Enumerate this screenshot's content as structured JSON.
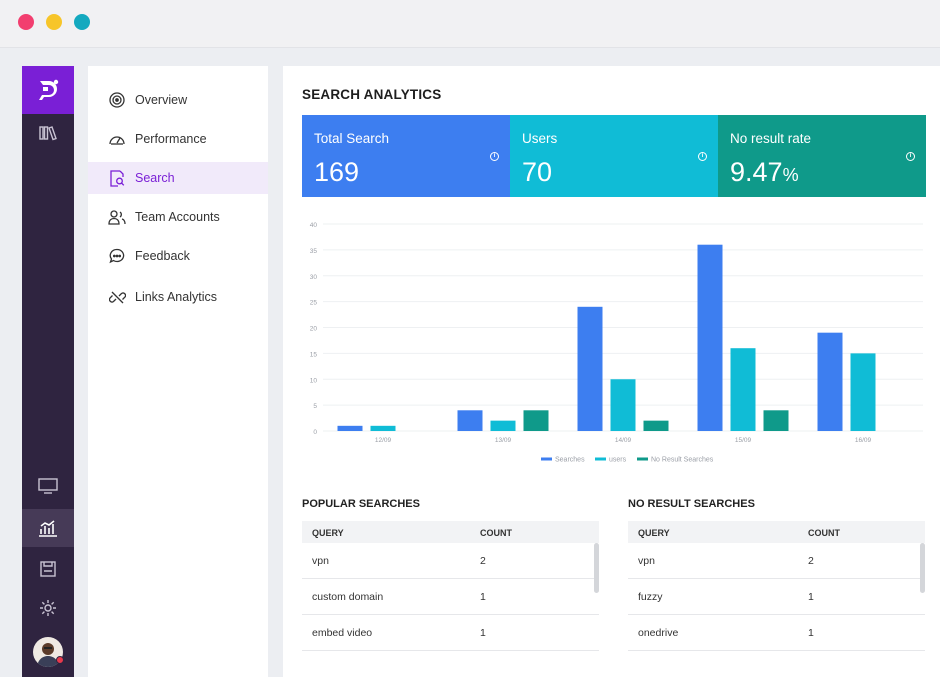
{
  "window": {
    "dots": [
      "#f23e6f",
      "#f7c529",
      "#14a9bf"
    ]
  },
  "rail": {
    "icons": [
      "logo-icon",
      "library-icon",
      "monitor-icon",
      "analytics-icon",
      "save-icon",
      "gear-icon",
      "avatar"
    ],
    "active": "analytics-icon"
  },
  "nav": {
    "items": [
      {
        "label": "Overview",
        "icon": "target-icon"
      },
      {
        "label": "Performance",
        "icon": "gauge-icon"
      },
      {
        "label": "Search",
        "icon": "search-doc-icon",
        "active": true
      },
      {
        "label": "Team Accounts",
        "icon": "team-icon"
      },
      {
        "label": "Feedback",
        "icon": "chat-icon"
      },
      {
        "label": "Links Analytics",
        "icon": "link-icon"
      }
    ]
  },
  "main": {
    "title": "SEARCH ANALYTICS",
    "cards": [
      {
        "label": "Total Search",
        "value": "169",
        "unit": "",
        "color": "#3d7ef0"
      },
      {
        "label": "Users",
        "value": "70",
        "unit": "",
        "color": "#10bcd6"
      },
      {
        "label": "No result rate",
        "value": "9.47",
        "unit": "%",
        "color": "#0f9a8a"
      }
    ],
    "popular": {
      "title": "POPULAR SEARCHES",
      "headers": [
        "QUERY",
        "COUNT"
      ],
      "rows": [
        {
          "query": "vpn",
          "count": "2"
        },
        {
          "query": "custom domain",
          "count": "1"
        },
        {
          "query": "embed video",
          "count": "1"
        }
      ]
    },
    "noresult": {
      "title": "NO RESULT SEARCHES",
      "headers": [
        "QUERY",
        "COUNT"
      ],
      "rows": [
        {
          "query": "vpn",
          "count": "2"
        },
        {
          "query": "fuzzy",
          "count": "1"
        },
        {
          "query": "onedrive",
          "count": "1"
        }
      ]
    }
  },
  "chart_data": {
    "type": "bar",
    "categories": [
      "12/09",
      "13/09",
      "14/09",
      "15/09",
      "16/09"
    ],
    "series": [
      {
        "name": "Searches",
        "values": [
          1,
          4,
          24,
          36,
          19
        ],
        "color": "#3d7ef0"
      },
      {
        "name": "users",
        "values": [
          1,
          2,
          10,
          16,
          15
        ],
        "color": "#10bcd6"
      },
      {
        "name": "No Result Searches",
        "values": [
          0,
          4,
          2,
          4,
          0
        ],
        "color": "#0f9a8a"
      }
    ],
    "yticks": [
      "0",
      "5",
      "10",
      "15",
      "20",
      "25",
      "30",
      "35",
      "40"
    ],
    "ylim": [
      0,
      40
    ],
    "grid": true,
    "legend": "bottom"
  }
}
